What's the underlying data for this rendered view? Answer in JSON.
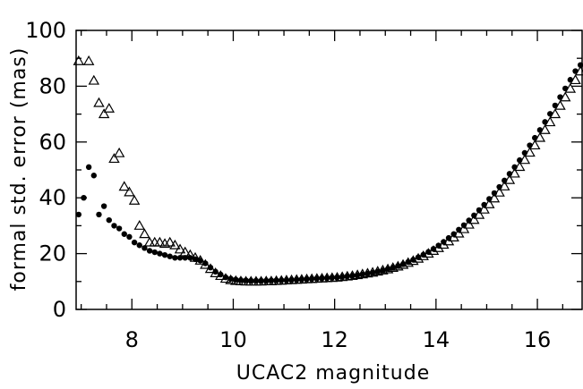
{
  "chart_data": {
    "type": "scatter",
    "title": "",
    "xlabel": "UCAC2 magnitude",
    "ylabel": "formal std. error (mas)",
    "xlim": [
      6.9,
      16.9
    ],
    "ylim": [
      0,
      100
    ],
    "xticks": [
      8,
      10,
      12,
      14,
      16
    ],
    "yticks": [
      0,
      20,
      40,
      60,
      80,
      100
    ],
    "grid": false,
    "legend": "none",
    "colors": {
      "axis": "#000000",
      "marker": "#000000"
    },
    "series": [
      {
        "marker": "filled-circle",
        "points": [
          [
            6.95,
            34
          ],
          [
            7.05,
            40
          ],
          [
            7.15,
            51
          ],
          [
            7.25,
            48
          ],
          [
            7.35,
            34
          ],
          [
            7.45,
            37
          ],
          [
            7.55,
            32
          ],
          [
            7.65,
            30
          ],
          [
            7.75,
            29
          ],
          [
            7.85,
            27
          ],
          [
            7.95,
            26
          ],
          [
            8.05,
            24
          ],
          [
            8.15,
            23
          ],
          [
            8.25,
            22
          ],
          [
            8.35,
            21
          ],
          [
            8.45,
            20.5
          ],
          [
            8.55,
            20
          ],
          [
            8.65,
            19.5
          ],
          [
            8.75,
            19
          ],
          [
            8.85,
            18.5
          ],
          [
            8.95,
            18.5
          ],
          [
            9.05,
            18.5
          ],
          [
            9.15,
            18.5
          ],
          [
            9.25,
            18
          ],
          [
            9.35,
            17.5
          ],
          [
            9.45,
            16.5
          ],
          [
            9.55,
            15
          ],
          [
            9.65,
            13.5
          ],
          [
            9.75,
            12.5
          ],
          [
            9.85,
            11.5
          ],
          [
            9.95,
            11
          ],
          [
            10.05,
            10.7
          ],
          [
            10.15,
            10.5
          ],
          [
            10.25,
            10.4
          ],
          [
            10.35,
            10.3
          ],
          [
            10.45,
            10.3
          ],
          [
            10.55,
            10.3
          ],
          [
            10.65,
            10.3
          ],
          [
            10.75,
            10.4
          ],
          [
            10.85,
            10.4
          ],
          [
            10.95,
            10.5
          ],
          [
            11.05,
            10.5
          ],
          [
            11.15,
            10.6
          ],
          [
            11.25,
            10.7
          ],
          [
            11.35,
            10.8
          ],
          [
            11.45,
            10.9
          ],
          [
            11.55,
            11
          ],
          [
            11.65,
            11.1
          ],
          [
            11.75,
            11.2
          ],
          [
            11.85,
            11.3
          ],
          [
            11.95,
            11.4
          ],
          [
            12.05,
            11.5
          ],
          [
            12.15,
            11.7
          ],
          [
            12.25,
            11.9
          ],
          [
            12.35,
            12.1
          ],
          [
            12.45,
            12.3
          ],
          [
            12.55,
            12.6
          ],
          [
            12.65,
            12.9
          ],
          [
            12.75,
            13.2
          ],
          [
            12.85,
            13.6
          ],
          [
            12.95,
            14
          ],
          [
            13.05,
            14.5
          ],
          [
            13.15,
            15
          ],
          [
            13.25,
            15.6
          ],
          [
            13.35,
            16.2
          ],
          [
            13.45,
            17
          ],
          [
            13.55,
            17.8
          ],
          [
            13.65,
            18.7
          ],
          [
            13.75,
            19.6
          ],
          [
            13.85,
            20.6
          ],
          [
            13.95,
            21.7
          ],
          [
            14.05,
            22.9
          ],
          [
            14.15,
            24.2
          ],
          [
            14.25,
            25.6
          ],
          [
            14.35,
            27
          ],
          [
            14.45,
            28.6
          ],
          [
            14.55,
            30.2
          ],
          [
            14.65,
            31.9
          ],
          [
            14.75,
            33.7
          ],
          [
            14.85,
            35.6
          ],
          [
            14.95,
            37.5
          ],
          [
            15.05,
            39.6
          ],
          [
            15.15,
            41.7
          ],
          [
            15.25,
            43.9
          ],
          [
            15.35,
            46.2
          ],
          [
            15.45,
            48.6
          ],
          [
            15.55,
            51
          ],
          [
            15.65,
            53.5
          ],
          [
            15.75,
            56.1
          ],
          [
            15.85,
            58.8
          ],
          [
            15.95,
            61.5
          ],
          [
            16.05,
            64.3
          ],
          [
            16.15,
            67.2
          ],
          [
            16.25,
            70.1
          ],
          [
            16.35,
            73.1
          ],
          [
            16.45,
            76.1
          ],
          [
            16.55,
            79.2
          ],
          [
            16.65,
            82.3
          ],
          [
            16.75,
            85.4
          ],
          [
            16.85,
            87.6
          ]
        ]
      },
      {
        "marker": "open-triangle",
        "points": [
          [
            6.95,
            89
          ],
          [
            7.15,
            89
          ],
          [
            7.25,
            82
          ],
          [
            7.35,
            74
          ],
          [
            7.45,
            70
          ],
          [
            7.55,
            72
          ],
          [
            7.65,
            54
          ],
          [
            7.75,
            56
          ],
          [
            7.85,
            44
          ],
          [
            7.95,
            42
          ],
          [
            8.05,
            39
          ],
          [
            8.15,
            30
          ],
          [
            8.25,
            27
          ],
          [
            8.35,
            24
          ],
          [
            8.45,
            24
          ],
          [
            8.55,
            24
          ],
          [
            8.65,
            23.5
          ],
          [
            8.75,
            24
          ],
          [
            8.85,
            23
          ],
          [
            8.95,
            21.5
          ],
          [
            9.05,
            20.5
          ],
          [
            9.15,
            19.5
          ],
          [
            9.25,
            18.5
          ],
          [
            9.35,
            17.5
          ],
          [
            9.45,
            16
          ],
          [
            9.55,
            14.5
          ],
          [
            9.65,
            13
          ],
          [
            9.75,
            12
          ],
          [
            9.85,
            11
          ],
          [
            9.95,
            10.5
          ],
          [
            10.05,
            10.2
          ],
          [
            10.15,
            10.1
          ],
          [
            10.25,
            10
          ],
          [
            10.35,
            10
          ],
          [
            10.45,
            10
          ],
          [
            10.55,
            10
          ],
          [
            10.65,
            10.1
          ],
          [
            10.75,
            10.1
          ],
          [
            10.85,
            10.2
          ],
          [
            10.95,
            10.3
          ],
          [
            11.05,
            10.4
          ],
          [
            11.15,
            10.5
          ],
          [
            11.25,
            10.6
          ],
          [
            11.35,
            10.7
          ],
          [
            11.45,
            10.8
          ],
          [
            11.55,
            10.9
          ],
          [
            11.65,
            11
          ],
          [
            11.75,
            11.1
          ],
          [
            11.85,
            11.2
          ],
          [
            11.95,
            11.3
          ],
          [
            12.05,
            11.4
          ],
          [
            12.15,
            11.6
          ],
          [
            12.25,
            11.8
          ],
          [
            12.35,
            12
          ],
          [
            12.45,
            12.3
          ],
          [
            12.55,
            12.6
          ],
          [
            12.65,
            12.9
          ],
          [
            12.75,
            13.2
          ],
          [
            12.85,
            13.6
          ],
          [
            12.95,
            14
          ],
          [
            13.05,
            14.4
          ],
          [
            13.15,
            14.9
          ],
          [
            13.25,
            15.4
          ],
          [
            13.35,
            16
          ],
          [
            13.45,
            16.7
          ],
          [
            13.55,
            17.4
          ],
          [
            13.65,
            18.2
          ],
          [
            13.75,
            19.1
          ],
          [
            13.85,
            20
          ],
          [
            13.95,
            21
          ],
          [
            14.05,
            22
          ],
          [
            14.15,
            23.2
          ],
          [
            14.25,
            24.4
          ],
          [
            14.35,
            25.8
          ],
          [
            14.45,
            27.2
          ],
          [
            14.55,
            28.8
          ],
          [
            14.65,
            30.4
          ],
          [
            14.75,
            32.1
          ],
          [
            14.85,
            33.9
          ],
          [
            14.95,
            35.8
          ],
          [
            15.05,
            37.7
          ],
          [
            15.15,
            39.8
          ],
          [
            15.25,
            41.9
          ],
          [
            15.35,
            44.1
          ],
          [
            15.45,
            46.4
          ],
          [
            15.55,
            48.7
          ],
          [
            15.65,
            51.1
          ],
          [
            15.75,
            53.6
          ],
          [
            15.85,
            56.2
          ],
          [
            15.95,
            58.8
          ],
          [
            16.05,
            61.5
          ],
          [
            16.15,
            64.3
          ],
          [
            16.25,
            67.1
          ],
          [
            16.35,
            70
          ],
          [
            16.45,
            73
          ],
          [
            16.55,
            76
          ],
          [
            16.65,
            79.1
          ],
          [
            16.75,
            82.2
          ],
          [
            16.85,
            85.3
          ]
        ]
      }
    ]
  }
}
